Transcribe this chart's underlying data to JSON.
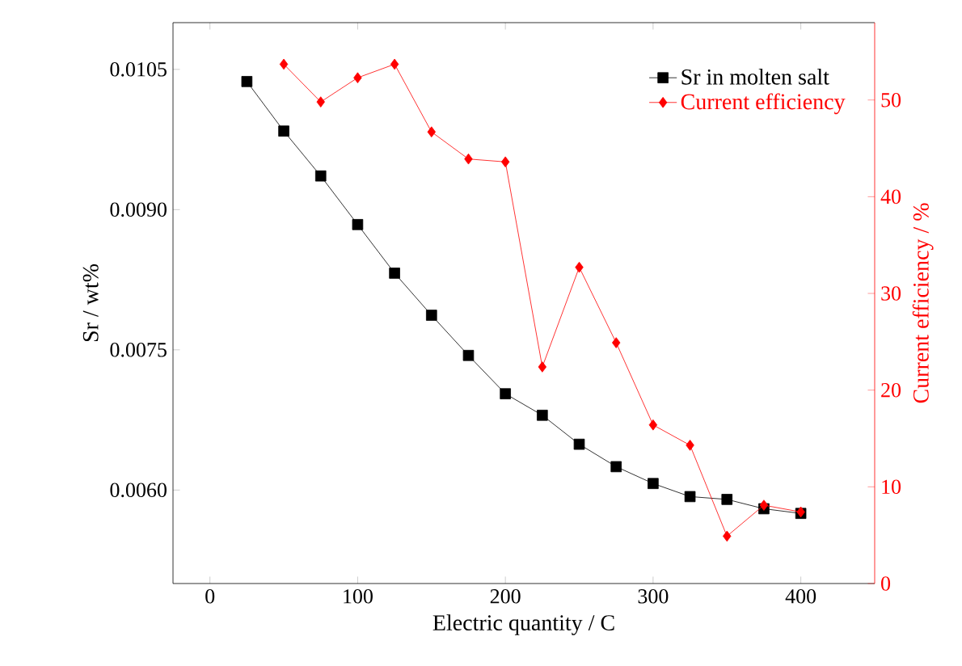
{
  "chart_data": {
    "type": "line",
    "xlabel": "Electric quantity / C",
    "ylabel": "Sr / wt%",
    "y2label": "Current efficiency / %",
    "x": [
      25,
      50,
      75,
      100,
      125,
      150,
      175,
      200,
      225,
      250,
      275,
      300,
      325,
      350,
      375,
      400
    ],
    "series": [
      {
        "name": "Sr in molten salt",
        "color": "#000000",
        "marker": "square",
        "values": [
          0.01037,
          0.00984,
          0.00936,
          0.00884,
          0.00832,
          0.00787,
          0.00744,
          0.00703,
          0.0068,
          0.00649,
          0.00625,
          0.00607,
          0.00593,
          0.0059,
          0.0058,
          0.00575
        ]
      },
      {
        "name": "Current efficiency",
        "color": "#ff0000",
        "marker": "diamond",
        "axis": "y2",
        "x": [
          50,
          75,
          100,
          125,
          150,
          175,
          200,
          225,
          250,
          275,
          300,
          325,
          350,
          375,
          400
        ],
        "values": [
          53.7,
          49.8,
          52.3,
          53.7,
          46.7,
          43.9,
          43.6,
          22.4,
          32.7,
          24.9,
          16.4,
          14.3,
          4.9,
          8.1,
          7.4
        ]
      }
    ],
    "xlim": [
      -25,
      450
    ],
    "xticks": [
      0,
      100,
      200,
      300,
      400
    ],
    "ylim": [
      0.005,
      0.011
    ],
    "yticks": [
      {
        "value": 0.006,
        "label": "0.0060"
      },
      {
        "value": 0.0075,
        "label": "0.0075"
      },
      {
        "value": 0.009,
        "label": "0.0090"
      },
      {
        "value": 0.0105,
        "label": "0.0105"
      }
    ],
    "y2lim": [
      0,
      58
    ],
    "y2ticks": [
      0,
      10,
      20,
      30,
      40,
      50
    ],
    "legend": "top right",
    "grid": false,
    "line_style": "solid"
  }
}
